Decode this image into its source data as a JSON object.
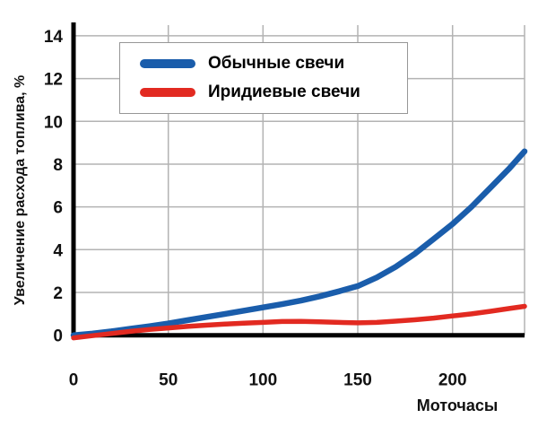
{
  "chart_data": {
    "type": "line",
    "title": "",
    "xlabel": "Моточасы",
    "ylabel": "Увеличение расхода топлива, %",
    "xlim": [
      0,
      238
    ],
    "ylim": [
      -0.6,
      14.5
    ],
    "xticks": [
      0,
      50,
      100,
      150,
      200
    ],
    "yticks": [
      0,
      2,
      4,
      6,
      8,
      10,
      12,
      14
    ],
    "grid": true,
    "legend_position": "top-left-inside",
    "colors": {
      "axis": "#000000",
      "grid": "#b3b3b3",
      "text": "#111111",
      "background": "#ffffff"
    },
    "series": [
      {
        "name": "Обычные свечи",
        "color": "#1a5dab",
        "width": 6.5,
        "x": [
          0,
          10,
          20,
          30,
          40,
          50,
          60,
          70,
          80,
          90,
          100,
          110,
          120,
          130,
          140,
          150,
          160,
          170,
          180,
          190,
          200,
          210,
          220,
          230,
          238
        ],
        "y": [
          0,
          0.08,
          0.18,
          0.3,
          0.42,
          0.55,
          0.7,
          0.85,
          1.0,
          1.15,
          1.3,
          1.45,
          1.62,
          1.82,
          2.05,
          2.3,
          2.7,
          3.2,
          3.8,
          4.5,
          5.2,
          6.0,
          6.9,
          7.8,
          8.6
        ]
      },
      {
        "name": "Иридиевые свечи",
        "color": "#e22a21",
        "width": 5.5,
        "x": [
          0,
          10,
          20,
          30,
          40,
          50,
          60,
          70,
          80,
          90,
          100,
          110,
          120,
          130,
          140,
          150,
          160,
          170,
          180,
          190,
          200,
          210,
          220,
          230,
          238
        ],
        "y": [
          -0.12,
          -0.02,
          0.08,
          0.18,
          0.27,
          0.34,
          0.41,
          0.47,
          0.52,
          0.56,
          0.6,
          0.64,
          0.65,
          0.63,
          0.6,
          0.58,
          0.6,
          0.66,
          0.72,
          0.8,
          0.9,
          1.0,
          1.12,
          1.25,
          1.35
        ]
      }
    ]
  }
}
